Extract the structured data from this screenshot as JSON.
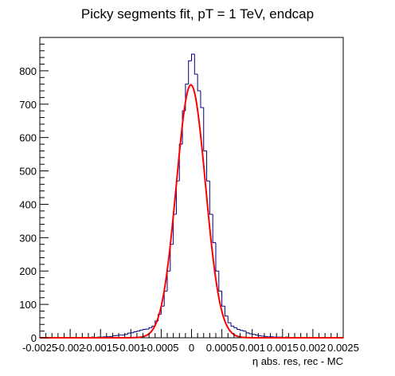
{
  "chart_data": {
    "type": "histogram",
    "title": "Picky segments fit, pT = 1 TeV, endcap",
    "xlabel": "η abs. res, rec - MC",
    "ylabel": "",
    "xlim": [
      -0.0025,
      0.0025
    ],
    "ylim": [
      0,
      900
    ],
    "x_ticks": [
      -0.0025,
      -0.002,
      -0.0015,
      -0.001,
      -0.0005,
      0,
      0.0005,
      0.001,
      0.0015,
      0.002,
      0.0025
    ],
    "x_tick_labels": [
      "-0.0025",
      "-0.002",
      "-0.0015",
      "-0.001",
      "-0.0005",
      "0",
      "0.0005",
      "0.001",
      "0.0015",
      "0.002",
      "0.0025"
    ],
    "y_ticks": [
      0,
      100,
      200,
      300,
      400,
      500,
      600,
      700,
      800
    ],
    "y_tick_labels": [
      "0",
      "100",
      "200",
      "300",
      "400",
      "500",
      "600",
      "700",
      "800"
    ],
    "grid": false,
    "legend": "none",
    "colors": {
      "histogram": "#000080",
      "fit": "#ff0000",
      "axes": "#000000"
    },
    "histogram": {
      "bin_width": 5e-05,
      "bin_edges_range": [
        -0.0025,
        0.0025
      ],
      "counts": [
        0,
        0,
        0,
        0,
        0,
        0,
        0,
        0,
        0,
        0,
        1,
        0,
        0,
        1,
        0,
        1,
        1,
        2,
        1,
        2,
        2,
        3,
        3,
        4,
        6,
        7,
        8,
        8,
        10,
        14,
        15,
        18,
        20,
        23,
        25,
        26,
        30,
        35,
        50,
        70,
        95,
        140,
        200,
        280,
        370,
        470,
        580,
        680,
        760,
        830,
        850,
        790,
        740,
        690,
        560,
        470,
        370,
        285,
        200,
        140,
        95,
        65,
        45,
        35,
        30,
        25,
        22,
        20,
        15,
        12,
        10,
        8,
        6,
        5,
        4,
        3,
        3,
        2,
        2,
        2,
        1,
        2,
        1,
        1,
        1,
        1,
        0,
        1,
        0,
        1,
        0,
        0,
        0,
        0,
        0,
        0,
        0,
        0,
        0,
        0
      ]
    },
    "fit": {
      "function": "gaussian",
      "amplitude": 758,
      "mean": -1e-05,
      "sigma": 0.00024,
      "range": [
        -0.0025,
        0.0025
      ]
    }
  }
}
